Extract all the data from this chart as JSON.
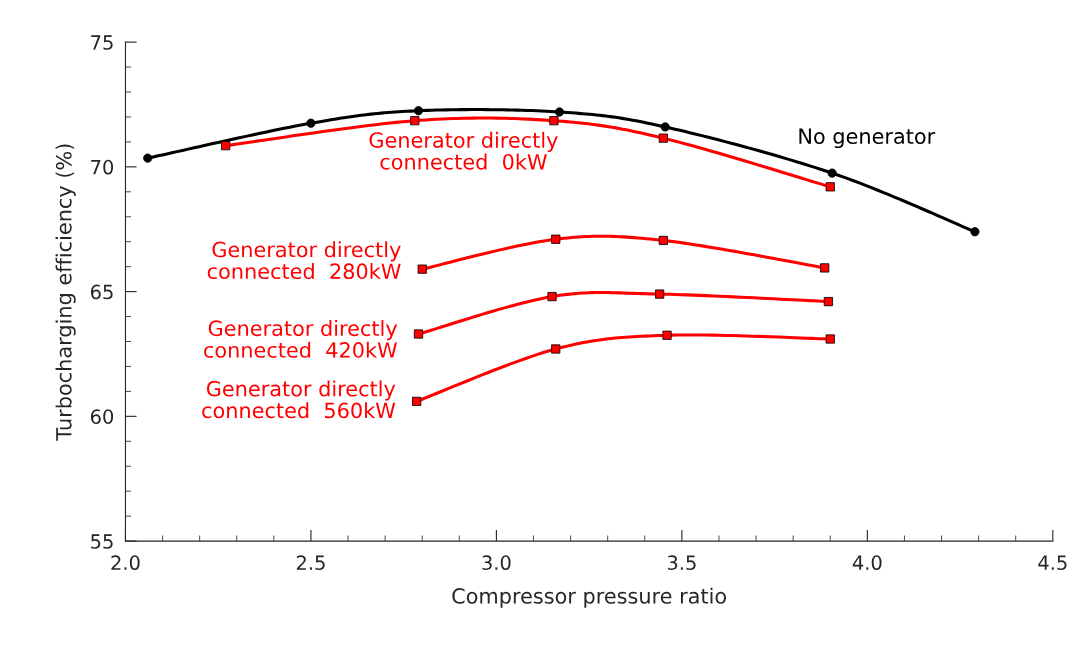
{
  "chart_data": {
    "type": "line",
    "xlabel": "Compressor pressure ratio",
    "ylabel": "Turbocharging efficiency (%)",
    "xlim": [
      2.0,
      4.5
    ],
    "ylim": [
      55,
      75
    ],
    "marker": "square",
    "grid": false,
    "legend": false,
    "xticks": [
      {
        "value": 2.0,
        "label": "2.0"
      },
      {
        "value": 2.1,
        "label": null
      },
      {
        "value": 2.2,
        "label": null
      },
      {
        "value": 2.3,
        "label": null
      },
      {
        "value": 2.4,
        "label": null
      },
      {
        "value": 2.5,
        "label": "2.5"
      },
      {
        "value": 2.6,
        "label": null
      },
      {
        "value": 2.7,
        "label": null
      },
      {
        "value": 2.8,
        "label": null
      },
      {
        "value": 2.9,
        "label": null
      },
      {
        "value": 3.0,
        "label": "3.0"
      },
      {
        "value": 3.1,
        "label": null
      },
      {
        "value": 3.2,
        "label": null
      },
      {
        "value": 3.3,
        "label": null
      },
      {
        "value": 3.4,
        "label": null
      },
      {
        "value": 3.5,
        "label": "3.5"
      },
      {
        "value": 3.6,
        "label": null
      },
      {
        "value": 3.7,
        "label": null
      },
      {
        "value": 3.8,
        "label": null
      },
      {
        "value": 3.9,
        "label": null
      },
      {
        "value": 4.0,
        "label": "4.0"
      },
      {
        "value": 4.1,
        "label": null
      },
      {
        "value": 4.2,
        "label": null
      },
      {
        "value": 4.3,
        "label": null
      },
      {
        "value": 4.4,
        "label": null
      },
      {
        "value": 4.5,
        "label": "4.5"
      }
    ],
    "yticks": [
      55,
      {
        "value": 56,
        "label": null
      },
      {
        "value": 57,
        "label": null
      },
      {
        "value": 58,
        "label": null
      },
      {
        "value": 59,
        "label": null
      },
      60,
      {
        "value": 61,
        "label": null
      },
      {
        "value": 62,
        "label": null
      },
      {
        "value": 63,
        "label": null
      },
      {
        "value": 64,
        "label": null
      },
      65,
      {
        "value": 66,
        "label": null
      },
      {
        "value": 67,
        "label": null
      },
      {
        "value": 68,
        "label": null
      },
      {
        "value": 69,
        "label": null
      },
      70,
      {
        "value": 71,
        "label": null
      },
      {
        "value": 72,
        "label": null
      },
      {
        "value": 73,
        "label": null
      },
      {
        "value": 74,
        "label": null
      },
      75
    ],
    "series": [
      {
        "name": "No generator",
        "color": "#000000",
        "marker": "circle",
        "x": [
          2.06,
          2.5,
          2.79,
          3.17,
          3.455,
          3.905,
          4.29
        ],
        "values": [
          70.35,
          71.75,
          72.25,
          72.2,
          71.6,
          69.75,
          67.4
        ]
      },
      {
        "name": "Generator directly\nconnected  0kW",
        "color": "#ff0000",
        "x": [
          2.27,
          2.78,
          3.155,
          3.45,
          3.9
        ],
        "values": [
          70.85,
          71.85,
          71.85,
          71.15,
          69.2
        ]
      },
      {
        "name": "Generator directly\nconnected  280kW",
        "color": "#ff0000",
        "x": [
          2.8,
          3.16,
          3.45,
          3.885
        ],
        "values": [
          65.9,
          67.1,
          67.05,
          65.95
        ]
      },
      {
        "name": "Generator directly\nconnected  420kW",
        "color": "#ff0000",
        "x": [
          2.79,
          3.15,
          3.44,
          3.895
        ],
        "values": [
          63.3,
          64.8,
          64.9,
          64.6
        ]
      },
      {
        "name": "Generator directly\nconnected  560kW",
        "color": "#ff0000",
        "x": [
          2.785,
          3.16,
          3.46,
          3.9
        ],
        "values": [
          60.6,
          62.7,
          63.25,
          63.1
        ]
      }
    ]
  }
}
